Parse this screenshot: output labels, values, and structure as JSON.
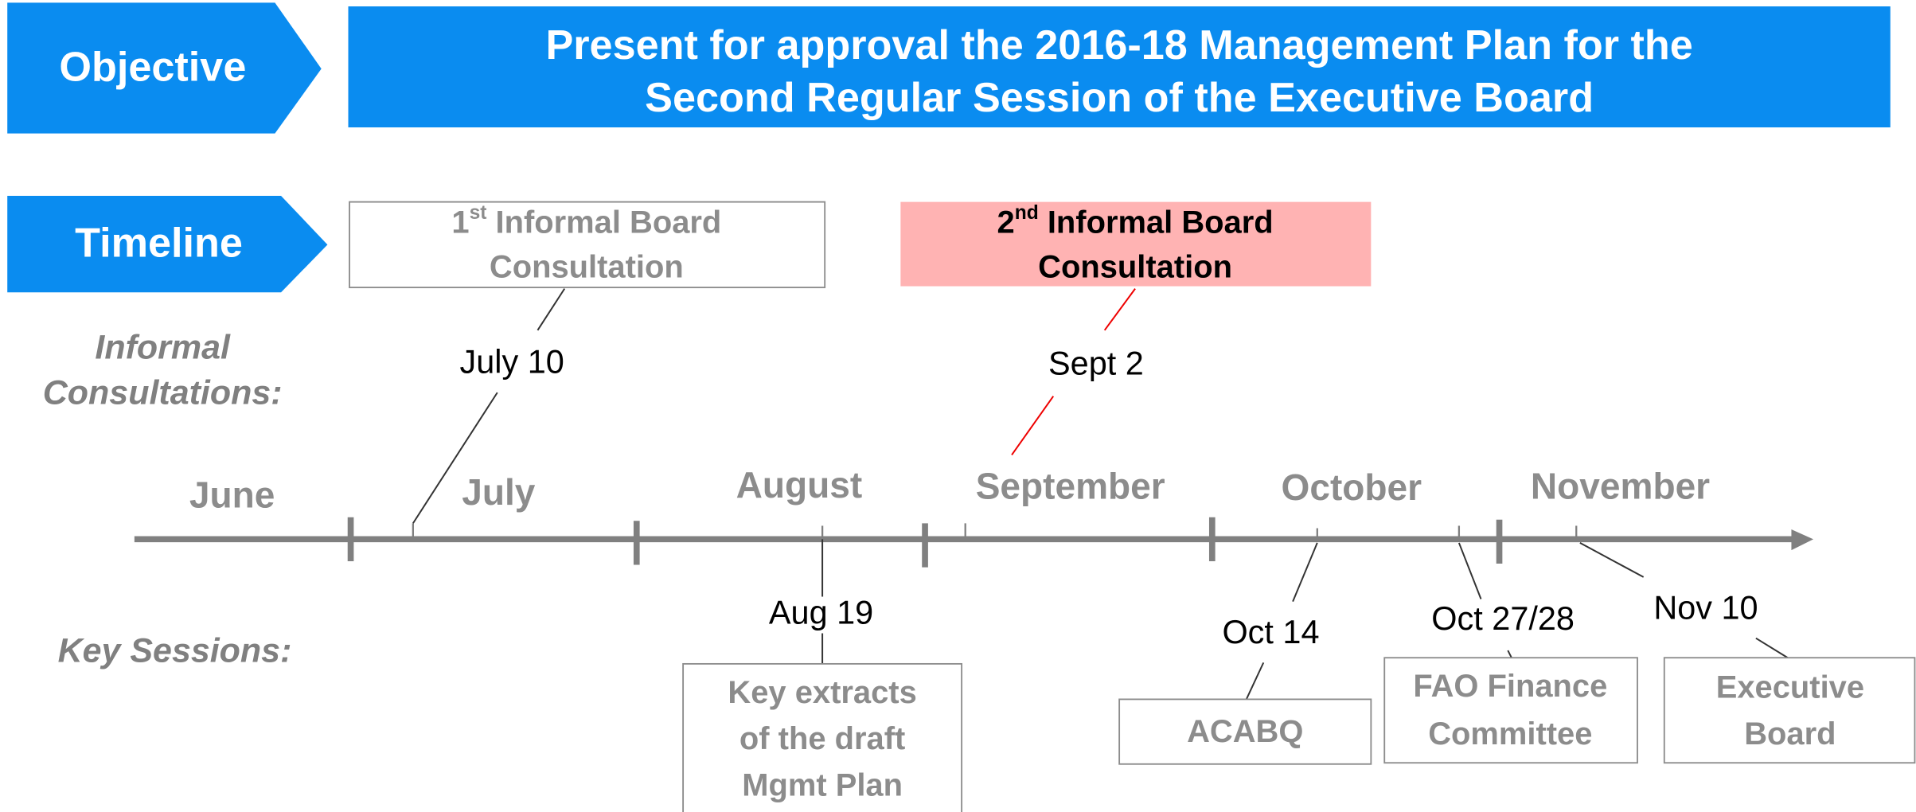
{
  "objective": {
    "label": "Objective",
    "lines": [
      "Present for approval the 2016-18 Management Plan for the",
      "Second Regular Session of the Executive Board"
    ]
  },
  "timeline": {
    "label": "Timeline",
    "row_labels": {
      "informal": [
        "Informal",
        "Consultations:"
      ],
      "sessions": "Key Sessions:"
    },
    "months": [
      "June",
      "July",
      "August",
      "September",
      "October",
      "November"
    ],
    "consultations": [
      {
        "ordinal": "1",
        "suffix": "st",
        "lines": [
          "Informal Board",
          "Consultation"
        ],
        "date": "July 10"
      },
      {
        "ordinal": "2",
        "suffix": "nd",
        "lines": [
          "Informal Board",
          "Consultation"
        ],
        "date": "Sept 2"
      }
    ],
    "sessions": [
      {
        "date": "Aug 19",
        "lines": [
          "Key extracts",
          "of the draft",
          "Mgmt Plan"
        ]
      },
      {
        "date": "Oct 14",
        "lines": [
          "ACABQ"
        ]
      },
      {
        "date": "Oct 27/28",
        "lines": [
          "FAO Finance",
          "Committee"
        ]
      },
      {
        "date": "Nov 10",
        "lines": [
          "Executive",
          "Board"
        ]
      }
    ]
  }
}
